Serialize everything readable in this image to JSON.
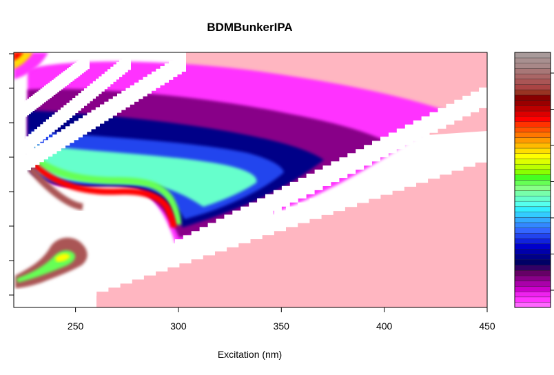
{
  "chart_data": {
    "type": "heatmap",
    "title": "BDMBunkerIPA",
    "xlabel": "Excitation (nm)",
    "ylabel": "",
    "xlim": [
      220,
      450
    ],
    "x_ticks": [
      250,
      300,
      350,
      400,
      450
    ],
    "y_ticks_count": 8,
    "colorbar": {
      "low_color": "#ff66ff",
      "high_color": "#a89a9a",
      "palette": [
        "#ff66ff",
        "#ff33ff",
        "#ee22ee",
        "#cc00cc",
        "#aa00aa",
        "#880088",
        "#660066",
        "#330066",
        "#000066",
        "#000088",
        "#0000aa",
        "#0000cc",
        "#1122dd",
        "#2244ee",
        "#3366ff",
        "#3388ff",
        "#33aaff",
        "#33ccff",
        "#33eeff",
        "#55ffee",
        "#66ffcc",
        "#77ffaa",
        "#88ff88",
        "#66ff55",
        "#44ff22",
        "#88ff00",
        "#bbff00",
        "#ddff00",
        "#ffff00",
        "#ffdd00",
        "#ffbb00",
        "#ff9900",
        "#ff7700",
        "#ff5500",
        "#ff3300",
        "#ff0000",
        "#dd0000",
        "#bb0000",
        "#990000",
        "#880000",
        "#993322",
        "#aa4444",
        "#aa5555",
        "#aa6666",
        "#a87777",
        "#a88888",
        "#a89090",
        "#a89a9a"
      ]
    },
    "background_color": "#ffb6c1",
    "scatter_band_color": "#ffffff"
  }
}
